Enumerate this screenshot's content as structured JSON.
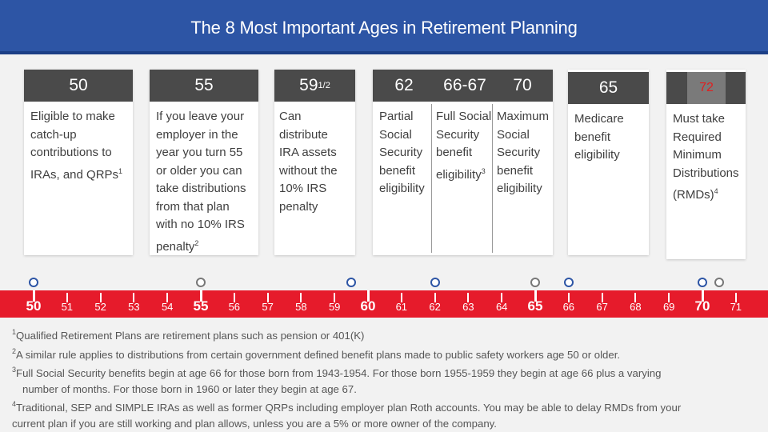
{
  "title": "The 8 Most Important Ages in Retirement Planning",
  "cards": [
    {
      "age": "50",
      "lines": [
        "Eligible to make",
        "catch-up",
        "contributions to",
        "IRAs, and QRPs"
      ],
      "sup": "1"
    },
    {
      "age": "55",
      "lines": [
        "If you leave your",
        "employer in the",
        "year you turn 55",
        "or older you can",
        "take distributions",
        "from that plan",
        "with no 10% IRS",
        "penalty"
      ],
      "sup": "2"
    },
    {
      "age": "59",
      "age_frac": "1/2",
      "lines": [
        "Can",
        "distribute",
        "IRA assets",
        "without the",
        "10% IRS",
        "penalty"
      ]
    },
    {
      "age": "62",
      "lines": [
        "Partial",
        "Social",
        "Security",
        "benefit",
        "eligibility"
      ]
    },
    {
      "age": "66-67",
      "lines": [
        "Full Social",
        "Security",
        "benefit",
        "eligibility"
      ],
      "sup": "3"
    },
    {
      "age": "70",
      "lines": [
        "Maximum",
        "Social",
        "Security",
        "benefit",
        "eligibility"
      ]
    },
    {
      "age": "65",
      "lines": [
        "Medicare",
        "benefit",
        "eligibility"
      ]
    },
    {
      "age": "72",
      "lines": [
        "Must take",
        "Required",
        "Minimum",
        "Distributions",
        "(RMDs)"
      ],
      "sup": "4"
    }
  ],
  "timeline": {
    "ages": [
      "50",
      "51",
      "52",
      "53",
      "54",
      "55",
      "56",
      "57",
      "58",
      "59",
      "60",
      "61",
      "62",
      "63",
      "64",
      "65",
      "66",
      "67",
      "68",
      "69",
      "70",
      "71"
    ],
    "bold_ages": [
      "50",
      "55",
      "60",
      "65",
      "70"
    ],
    "markers": [
      {
        "age": 50,
        "color": "blue"
      },
      {
        "age": 55,
        "color": "grey"
      },
      {
        "age": 59.5,
        "color": "blue"
      },
      {
        "age": 62,
        "color": "blue"
      },
      {
        "age": 65,
        "color": "grey"
      },
      {
        "age": 66,
        "color": "blue"
      },
      {
        "age": 70,
        "color": "blue"
      },
      {
        "age": 70.5,
        "color": "grey"
      }
    ]
  },
  "footnotes": [
    {
      "mark": "1",
      "text": "Qualified Retirement Plans are retirement plans such as pension or 401(K)"
    },
    {
      "mark": "2",
      "text": "A similar rule applies to distributions from certain government defined benefit plans made to public safety workers age 50 or older."
    },
    {
      "mark": "3",
      "text": "Full Social Security benefits begin at age 66 for those born from 1943-1954. For those born 1955-1959 they begin at age 66 plus a varying",
      "cont": "number of months. For those born in 1960 or later they begin at age 67."
    },
    {
      "mark": "4",
      "text": "Traditional, SEP and SIMPLE IRAs as well as former QRPs including employer plan Roth accounts. You may be able to delay RMDs from your",
      "cont": "current plan if you are still working  and plan allows, unless you are a 5% or more owner of the company."
    }
  ]
}
